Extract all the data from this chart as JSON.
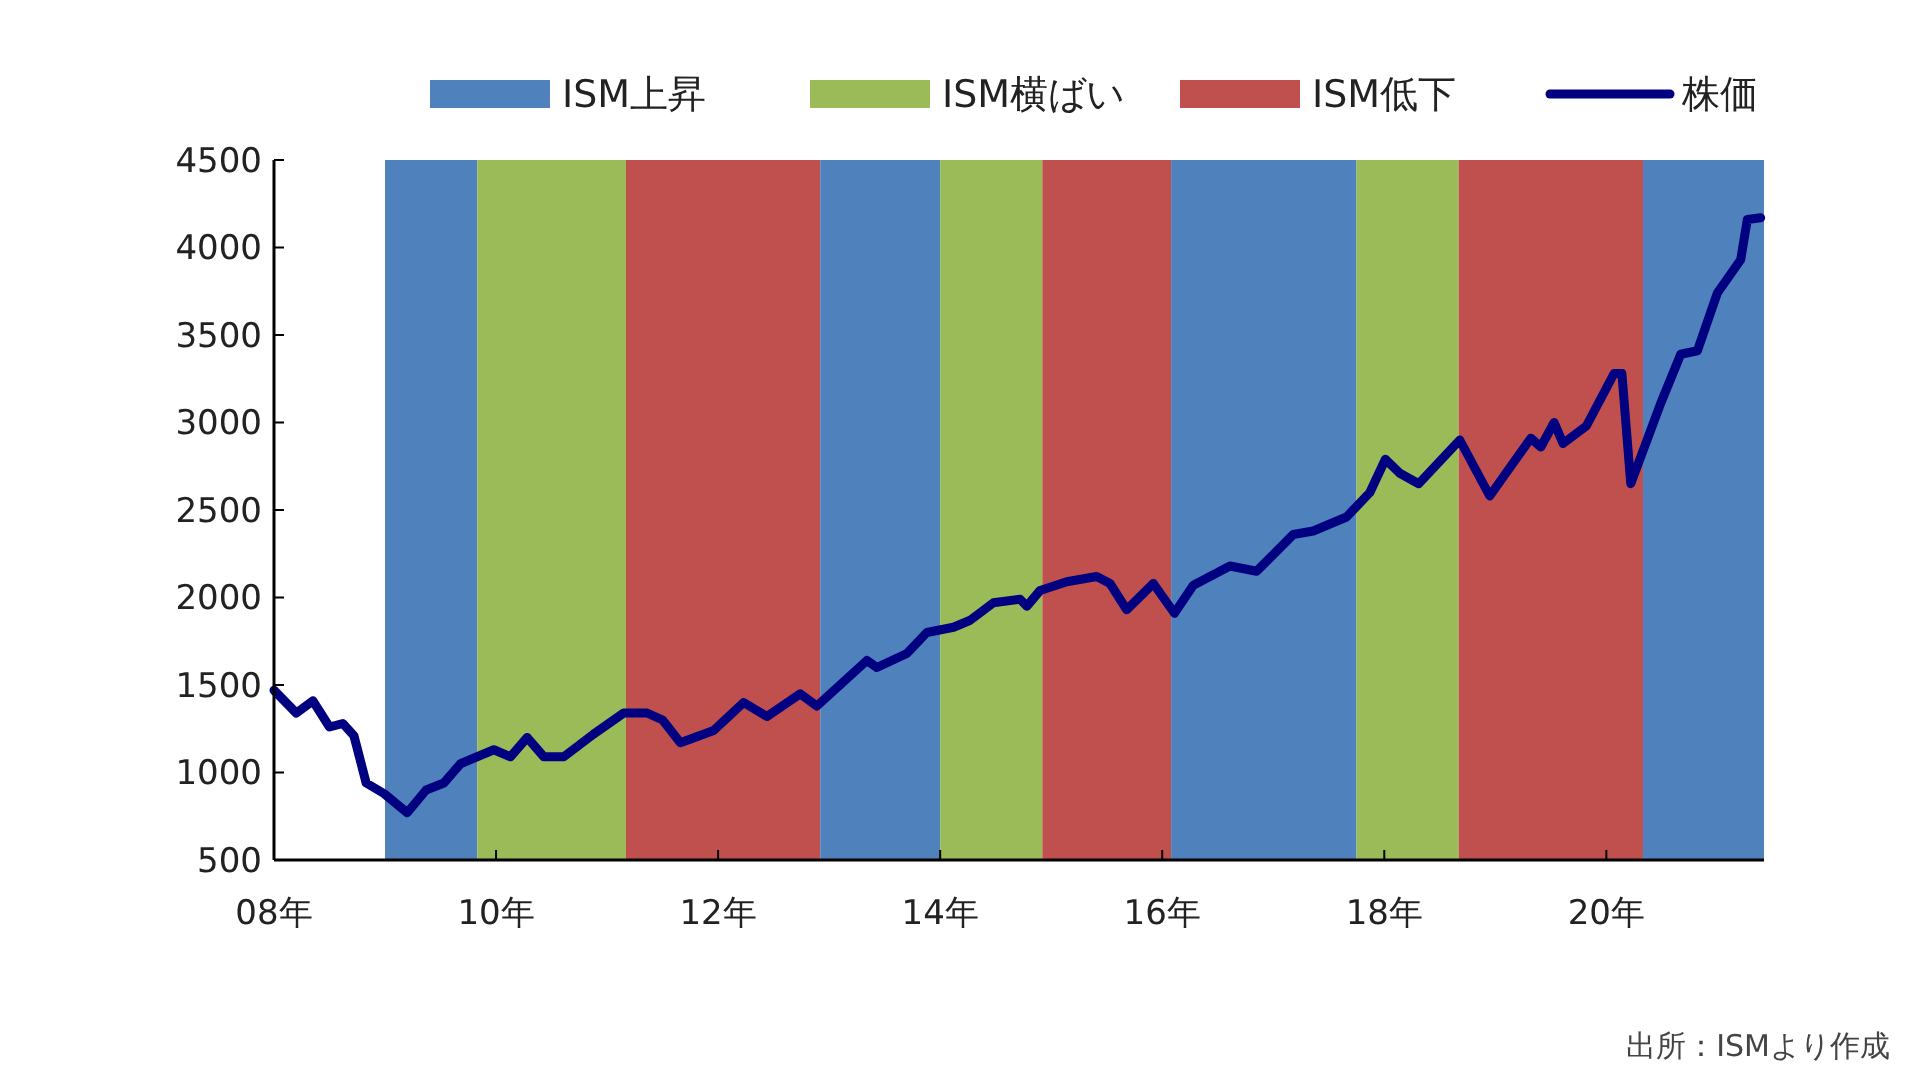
{
  "chart_data": {
    "type": "line",
    "xlim": [
      8,
      21.42
    ],
    "ylim": [
      500,
      4500
    ],
    "xticks": [
      {
        "value": 8,
        "label": "08年"
      },
      {
        "value": 10,
        "label": "10年"
      },
      {
        "value": 12,
        "label": "12年"
      },
      {
        "value": 14,
        "label": "14年"
      },
      {
        "value": 16,
        "label": "16年"
      },
      {
        "value": 18,
        "label": "18年"
      },
      {
        "value": 20,
        "label": "20年"
      }
    ],
    "yticks": [
      500,
      1000,
      1500,
      2000,
      2500,
      3000,
      3500,
      4000,
      4500
    ],
    "bands": [
      {
        "axis": "x",
        "from": 9,
        "to": 9.83,
        "label": "ISM上昇",
        "color": "#4f81bd"
      },
      {
        "axis": "x",
        "from": 9.83,
        "to": 11.17,
        "label": "ISM横ばい",
        "color": "#9bbb59"
      },
      {
        "axis": "x",
        "from": 11.17,
        "to": 12.92,
        "label": "ISM低下",
        "color": "#c0504d"
      },
      {
        "axis": "x",
        "from": 12.92,
        "to": 14,
        "color": "#4f81bd"
      },
      {
        "axis": "x",
        "from": 14,
        "to": 14.92,
        "color": "#9bbb59"
      },
      {
        "axis": "x",
        "from": 14.92,
        "to": 16.08,
        "color": "#c0504d"
      },
      {
        "axis": "x",
        "from": 16.08,
        "to": 17.75,
        "color": "#4f81bd"
      },
      {
        "axis": "x",
        "from": 17.75,
        "to": 18.67,
        "color": "#9bbb59"
      },
      {
        "axis": "x",
        "from": 18.67,
        "to": 20.33,
        "color": "#c0504d"
      },
      {
        "axis": "x",
        "from": 20.33,
        "to": 21.42,
        "color": "#4f81bd"
      }
    ],
    "series": [
      {
        "name": "株価",
        "color": "#000080",
        "x": [
          8,
          8.2,
          8.35,
          8.5,
          8.62,
          8.72,
          8.83,
          8.99,
          9.2,
          9.37,
          9.53,
          9.68,
          9.98,
          10.13,
          10.28,
          10.43,
          10.61,
          10.88,
          11.15,
          11.36,
          11.5,
          11.66,
          11.96,
          12.23,
          12.44,
          12.74,
          12.89,
          13.34,
          13.43,
          13.7,
          13.88,
          14.12,
          14.27,
          14.48,
          14.72,
          14.78,
          14.9,
          15.14,
          15.41,
          15.53,
          15.68,
          15.92,
          16.11,
          16.28,
          16.61,
          16.85,
          17.18,
          17.36,
          17.66,
          17.87,
          18.01,
          18.14,
          18.31,
          18.68,
          18.95,
          19.14,
          19.32,
          19.41,
          19.53,
          19.61,
          19.82,
          20.07,
          20.14,
          20.22,
          20.49,
          20.67,
          20.82,
          21,
          21.21,
          21.27,
          21.39
        ],
        "values": [
          1470,
          1340,
          1410,
          1260,
          1280,
          1210,
          940,
          880,
          770,
          900,
          940,
          1050,
          1130,
          1090,
          1200,
          1090,
          1090,
          1220,
          1340,
          1340,
          1300,
          1170,
          1240,
          1400,
          1320,
          1450,
          1380,
          1640,
          1600,
          1680,
          1800,
          1830,
          1870,
          1970,
          1990,
          1950,
          2040,
          2090,
          2120,
          2080,
          1930,
          2080,
          1910,
          2070,
          2180,
          2150,
          2360,
          2380,
          2460,
          2600,
          2790,
          2710,
          2650,
          2900,
          2580,
          2750,
          2910,
          2860,
          3000,
          2880,
          2980,
          3280,
          3280,
          2650,
          3110,
          3390,
          3410,
          3740,
          3930,
          4160,
          4170
        ]
      }
    ],
    "legend": "top",
    "annotations": [
      "出所：ISMより作成"
    ]
  }
}
